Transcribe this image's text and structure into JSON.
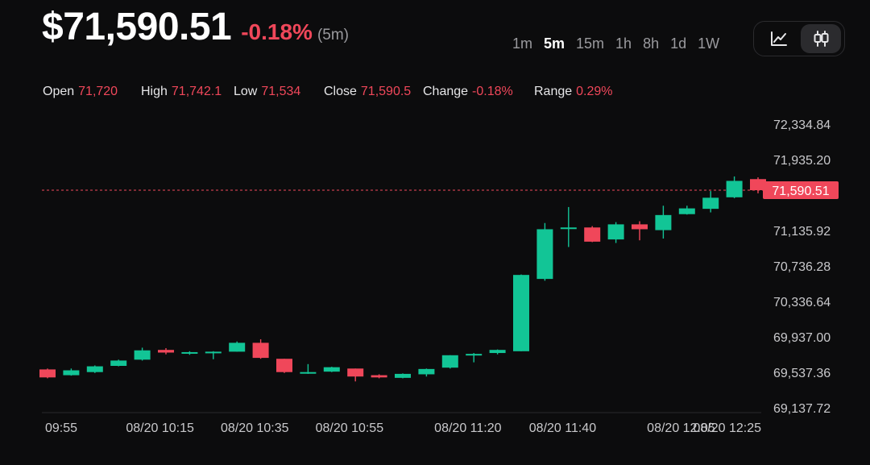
{
  "header": {
    "price": "$71,590.51",
    "change": "-0.18%",
    "interval_note": "(5m)"
  },
  "timeframes": [
    {
      "label": "1m",
      "active": false
    },
    {
      "label": "5m",
      "active": true
    },
    {
      "label": "15m",
      "active": false
    },
    {
      "label": "1h",
      "active": false
    },
    {
      "label": "8h",
      "active": false
    },
    {
      "label": "1d",
      "active": false
    },
    {
      "label": "1W",
      "active": false
    }
  ],
  "chart_toggle": {
    "line_icon": "line-chart-icon",
    "candle_icon": "candlestick-icon",
    "active": "candlestick"
  },
  "ohlc": [
    {
      "label": "Open",
      "value": "71,720"
    },
    {
      "label": "High",
      "value": "71,742.1"
    },
    {
      "label": "Low",
      "value": "71,534"
    },
    {
      "label": "Close",
      "value": "71,590.5"
    },
    {
      "label": "Change",
      "value": "-0.18%"
    },
    {
      "label": "Range",
      "value": "0.29%"
    }
  ],
  "colors": {
    "up": "#12c596",
    "down": "#f0475a",
    "background": "#0c0c0d",
    "text": "#c9c9cc"
  },
  "chart_data": {
    "type": "candlestick",
    "y_ticks": [
      {
        "value": 72334.84,
        "label": "72,334.84"
      },
      {
        "value": 71935.2,
        "label": "71,935.20"
      },
      {
        "value": 71135.92,
        "label": "71,135.92"
      },
      {
        "value": 70736.28,
        "label": "70,736.28"
      },
      {
        "value": 70336.64,
        "label": "70,336.64"
      },
      {
        "value": 69937.0,
        "label": "69,937.00"
      },
      {
        "value": 69537.36,
        "label": "69,537.36"
      },
      {
        "value": 69137.72,
        "label": "69,137.72"
      }
    ],
    "ylim": [
      69137.72,
      72334.84
    ],
    "x_ticks": [
      {
        "index": 0.75,
        "label": "09:55"
      },
      {
        "index": 4.75,
        "label": "08/20 10:15"
      },
      {
        "index": 8.75,
        "label": "08/20 10:35"
      },
      {
        "index": 12.75,
        "label": "08/20 10:55"
      },
      {
        "index": 17.75,
        "label": "08/20 11:20"
      },
      {
        "index": 21.75,
        "label": "08/20 11:40"
      },
      {
        "index": 26.75,
        "label": "08/20 12:05"
      },
      {
        "index": 30.75,
        "label": "08/20 12:25"
      }
    ],
    "last_price": {
      "value": 71590.51,
      "label": "71,590.51"
    },
    "candles": [
      {
        "o": 69570,
        "h": 69580,
        "l": 69470,
        "c": 69480
      },
      {
        "o": 69505,
        "h": 69580,
        "l": 69500,
        "c": 69560
      },
      {
        "o": 69540,
        "h": 69615,
        "l": 69530,
        "c": 69605
      },
      {
        "o": 69610,
        "h": 69680,
        "l": 69605,
        "c": 69670
      },
      {
        "o": 69680,
        "h": 69815,
        "l": 69670,
        "c": 69785
      },
      {
        "o": 69790,
        "h": 69810,
        "l": 69740,
        "c": 69760
      },
      {
        "o": 69765,
        "h": 69775,
        "l": 69735,
        "c": 69765
      },
      {
        "o": 69760,
        "h": 69775,
        "l": 69685,
        "c": 69770
      },
      {
        "o": 69770,
        "h": 69885,
        "l": 69770,
        "c": 69870
      },
      {
        "o": 69870,
        "h": 69910,
        "l": 69690,
        "c": 69700
      },
      {
        "o": 69690,
        "h": 69690,
        "l": 69530,
        "c": 69540
      },
      {
        "o": 69540,
        "h": 69630,
        "l": 69520,
        "c": 69540
      },
      {
        "o": 69545,
        "h": 69600,
        "l": 69540,
        "c": 69595
      },
      {
        "o": 69580,
        "h": 69580,
        "l": 69435,
        "c": 69490
      },
      {
        "o": 69505,
        "h": 69515,
        "l": 69470,
        "c": 69480
      },
      {
        "o": 69475,
        "h": 69525,
        "l": 69470,
        "c": 69520
      },
      {
        "o": 69515,
        "h": 69580,
        "l": 69490,
        "c": 69575
      },
      {
        "o": 69590,
        "h": 69730,
        "l": 69580,
        "c": 69730
      },
      {
        "o": 69735,
        "h": 69755,
        "l": 69650,
        "c": 69745
      },
      {
        "o": 69755,
        "h": 69795,
        "l": 69740,
        "c": 69790
      },
      {
        "o": 69775,
        "h": 70640,
        "l": 69775,
        "c": 70635
      },
      {
        "o": 70590,
        "h": 71220,
        "l": 70570,
        "c": 71150
      },
      {
        "o": 71160,
        "h": 71400,
        "l": 70950,
        "c": 71170
      },
      {
        "o": 71170,
        "h": 71185,
        "l": 71005,
        "c": 71010
      },
      {
        "o": 71035,
        "h": 71230,
        "l": 70995,
        "c": 71205
      },
      {
        "o": 71205,
        "h": 71240,
        "l": 71025,
        "c": 71150
      },
      {
        "o": 71140,
        "h": 71415,
        "l": 71045,
        "c": 71310
      },
      {
        "o": 71320,
        "h": 71415,
        "l": 71315,
        "c": 71385
      },
      {
        "o": 71380,
        "h": 71580,
        "l": 71340,
        "c": 71505
      },
      {
        "o": 71510,
        "h": 71745,
        "l": 71500,
        "c": 71695
      },
      {
        "o": 71715,
        "h": 71735,
        "l": 71555,
        "c": 71590
      }
    ]
  }
}
